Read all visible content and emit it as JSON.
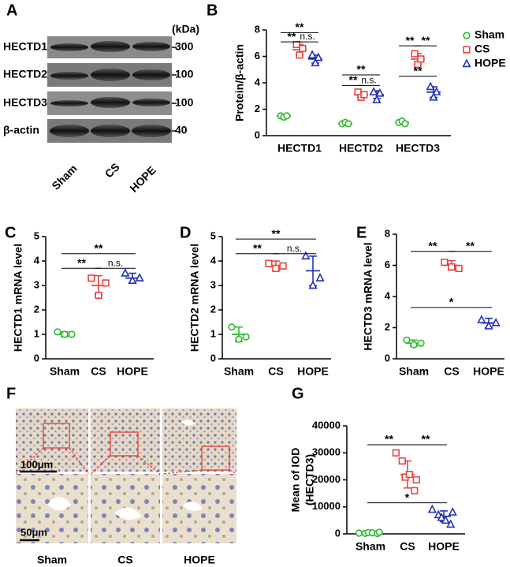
{
  "blot": {
    "panel": "A",
    "unit": "(kDa)",
    "rows": [
      {
        "label": "HECTD1",
        "kda": 300
      },
      {
        "label": "HECTD2",
        "kda": 100
      },
      {
        "label": "HECTD3",
        "kda": 100
      },
      {
        "label": "β-actin",
        "kda": 40
      }
    ],
    "lanes": [
      "Sham",
      "CS",
      "HOPE"
    ]
  },
  "histology": {
    "panel": "F",
    "scale_bars": [
      "100μm",
      "50μm"
    ],
    "lanes": [
      "Sham",
      "CS",
      "HOPE"
    ]
  },
  "chart_data": [
    {
      "type": "dotplot",
      "panel": "B",
      "ylabel": [
        "Protein/β-actin"
      ],
      "categories": [
        "HECTD1",
        "HECTD2",
        "HECTD3"
      ],
      "ylim": [
        0,
        8
      ],
      "yticks": [
        0,
        2,
        4,
        6,
        8
      ],
      "legend": "right",
      "series": [
        {
          "name": "Sham",
          "color": "#2db82d",
          "marker": "circle",
          "values": [
            [
              1.5,
              1.4,
              1.5
            ],
            [
              0.9,
              1.0,
              0.9
            ],
            [
              1.0,
              1.1,
              0.9
            ]
          ],
          "means": [
            1.5,
            0.9,
            1.0
          ],
          "errors": [
            0.1,
            0.1,
            0.1
          ]
        },
        {
          "name": "CS",
          "color": "#e8423f",
          "marker": "square",
          "values": [
            [
              6.9,
              6.1,
              6.6
            ],
            [
              3.3,
              2.9,
              3.1
            ],
            [
              6.2,
              5.4,
              5.8
            ]
          ],
          "means": [
            6.5,
            3.1,
            5.8
          ],
          "errors": [
            0.4,
            0.2,
            0.4
          ]
        },
        {
          "name": "HOPE",
          "color": "#2233b8",
          "marker": "triangle",
          "values": [
            [
              6.1,
              5.5,
              5.9
            ],
            [
              3.3,
              2.7,
              3.2
            ],
            [
              3.7,
              2.9,
              3.3
            ]
          ],
          "means": [
            5.8,
            3.1,
            3.3
          ],
          "errors": [
            0.3,
            0.3,
            0.4
          ]
        }
      ],
      "brackets": [
        {
          "category": "HECTD1",
          "from": "Sham",
          "to": "CS",
          "y": 7.1,
          "label": "**"
        },
        {
          "category": "HECTD1",
          "from": "CS",
          "to": "HOPE",
          "y": 7.1,
          "label": "n.s."
        },
        {
          "category": "HECTD1",
          "from": "Sham",
          "to": "HOPE",
          "y": 7.8,
          "label": "**"
        },
        {
          "category": "HECTD2",
          "from": "Sham",
          "to": "CS",
          "y": 3.8,
          "label": "**"
        },
        {
          "category": "HECTD2",
          "from": "CS",
          "to": "HOPE",
          "y": 3.8,
          "label": "n.s."
        },
        {
          "category": "HECTD2",
          "from": "Sham",
          "to": "HOPE",
          "y": 4.6,
          "label": "**"
        },
        {
          "category": "HECTD3",
          "from": "Sham",
          "to": "CS",
          "y": 6.8,
          "label": "**"
        },
        {
          "category": "HECTD3",
          "from": "CS",
          "to": "HOPE",
          "y": 6.8,
          "label": "**"
        },
        {
          "category": "HECTD3",
          "from": "Sham",
          "to": "HOPE",
          "y": 4.5,
          "label": "**"
        }
      ]
    },
    {
      "type": "dotplot",
      "panel": "C",
      "ylabel": [
        "HECTD1 mRNA level"
      ],
      "categories": [
        "Sham",
        "CS",
        "HOPE"
      ],
      "colors": [
        "#2db82d",
        "#e8423f",
        "#2233b8"
      ],
      "markers": [
        "circle",
        "square",
        "triangle"
      ],
      "ylim": [
        0,
        5
      ],
      "yticks": [
        0,
        1,
        2,
        3,
        4,
        5
      ],
      "values": [
        [
          1.1,
          1.0,
          1.0
        ],
        [
          3.3,
          2.6,
          3.1
        ],
        [
          3.5,
          3.2,
          3.3
        ]
      ],
      "means": [
        1.0,
        3.0,
        3.3
      ],
      "errors": [
        0.1,
        0.4,
        0.2
      ],
      "brackets": [
        {
          "from": "Sham",
          "to": "CS",
          "y": 3.7,
          "label": "**"
        },
        {
          "from": "CS",
          "to": "HOPE",
          "y": 3.7,
          "label": "n.s."
        },
        {
          "from": "Sham",
          "to": "HOPE",
          "y": 4.3,
          "label": "**"
        }
      ]
    },
    {
      "type": "dotplot",
      "panel": "D",
      "ylabel": [
        "HECTD2 mRNA level"
      ],
      "categories": [
        "Sham",
        "CS",
        "HOPE"
      ],
      "colors": [
        "#2db82d",
        "#e8423f",
        "#2233b8"
      ],
      "markers": [
        "circle",
        "square",
        "triangle"
      ],
      "ylim": [
        0,
        5
      ],
      "yticks": [
        0,
        1,
        2,
        3,
        4,
        5
      ],
      "values": [
        [
          1.3,
          0.8,
          0.9
        ],
        [
          3.9,
          3.7,
          3.8
        ],
        [
          4.2,
          3.0,
          3.3
        ]
      ],
      "means": [
        1.0,
        3.8,
        3.6
      ],
      "errors": [
        0.3,
        0.2,
        0.6
      ],
      "brackets": [
        {
          "from": "Sham",
          "to": "CS",
          "y": 4.3,
          "label": "**"
        },
        {
          "from": "CS",
          "to": "HOPE",
          "y": 4.3,
          "label": "n.s."
        },
        {
          "from": "Sham",
          "to": "HOPE",
          "y": 4.9,
          "label": "**"
        }
      ]
    },
    {
      "type": "dotplot",
      "panel": "E",
      "ylabel": [
        "HECTD3 mRNA level"
      ],
      "categories": [
        "Sham",
        "CS",
        "HOPE"
      ],
      "colors": [
        "#2db82d",
        "#e8423f",
        "#2233b8"
      ],
      "markers": [
        "circle",
        "square",
        "triangle"
      ],
      "ylim": [
        0,
        8
      ],
      "yticks": [
        0,
        2,
        4,
        6,
        8
      ],
      "values": [
        [
          1.2,
          0.9,
          1.0
        ],
        [
          6.2,
          5.9,
          5.8
        ],
        [
          2.5,
          2.1,
          2.3
        ]
      ],
      "means": [
        1.0,
        6.0,
        2.3
      ],
      "errors": [
        0.2,
        0.3,
        0.3
      ],
      "brackets": [
        {
          "from": "Sham",
          "to": "CS",
          "y": 6.9,
          "label": "**"
        },
        {
          "from": "CS",
          "to": "HOPE",
          "y": 6.9,
          "label": "**"
        },
        {
          "from": "Sham",
          "to": "HOPE",
          "y": 3.3,
          "label": "*"
        }
      ]
    },
    {
      "type": "dotplot",
      "panel": "G",
      "ylabel": [
        "Mean of IOD",
        "(HECTD3)"
      ],
      "categories": [
        "Sham",
        "CS",
        "HOPE"
      ],
      "colors": [
        "#2db82d",
        "#e8423f",
        "#2233b8"
      ],
      "markers": [
        "circle",
        "square",
        "triangle"
      ],
      "ylim": [
        0,
        40000
      ],
      "yticks": [
        0,
        10000,
        20000,
        30000,
        40000
      ],
      "values": [
        [
          300,
          200,
          500,
          400,
          100,
          600
        ],
        [
          30000,
          27000,
          21000,
          22000,
          16000,
          20000
        ],
        [
          9000,
          7000,
          6000,
          5000,
          3500,
          8000
        ]
      ],
      "means": [
        300,
        22000,
        6500
      ],
      "errors": [
        200,
        5000,
        2000
      ],
      "brackets": [
        {
          "from": "Sham",
          "to": "CS",
          "y": 33000,
          "label": "**"
        },
        {
          "from": "CS",
          "to": "HOPE",
          "y": 33000,
          "label": "**"
        },
        {
          "from": "Sham",
          "to": "HOPE",
          "y": 11500,
          "label": "*"
        }
      ]
    }
  ]
}
